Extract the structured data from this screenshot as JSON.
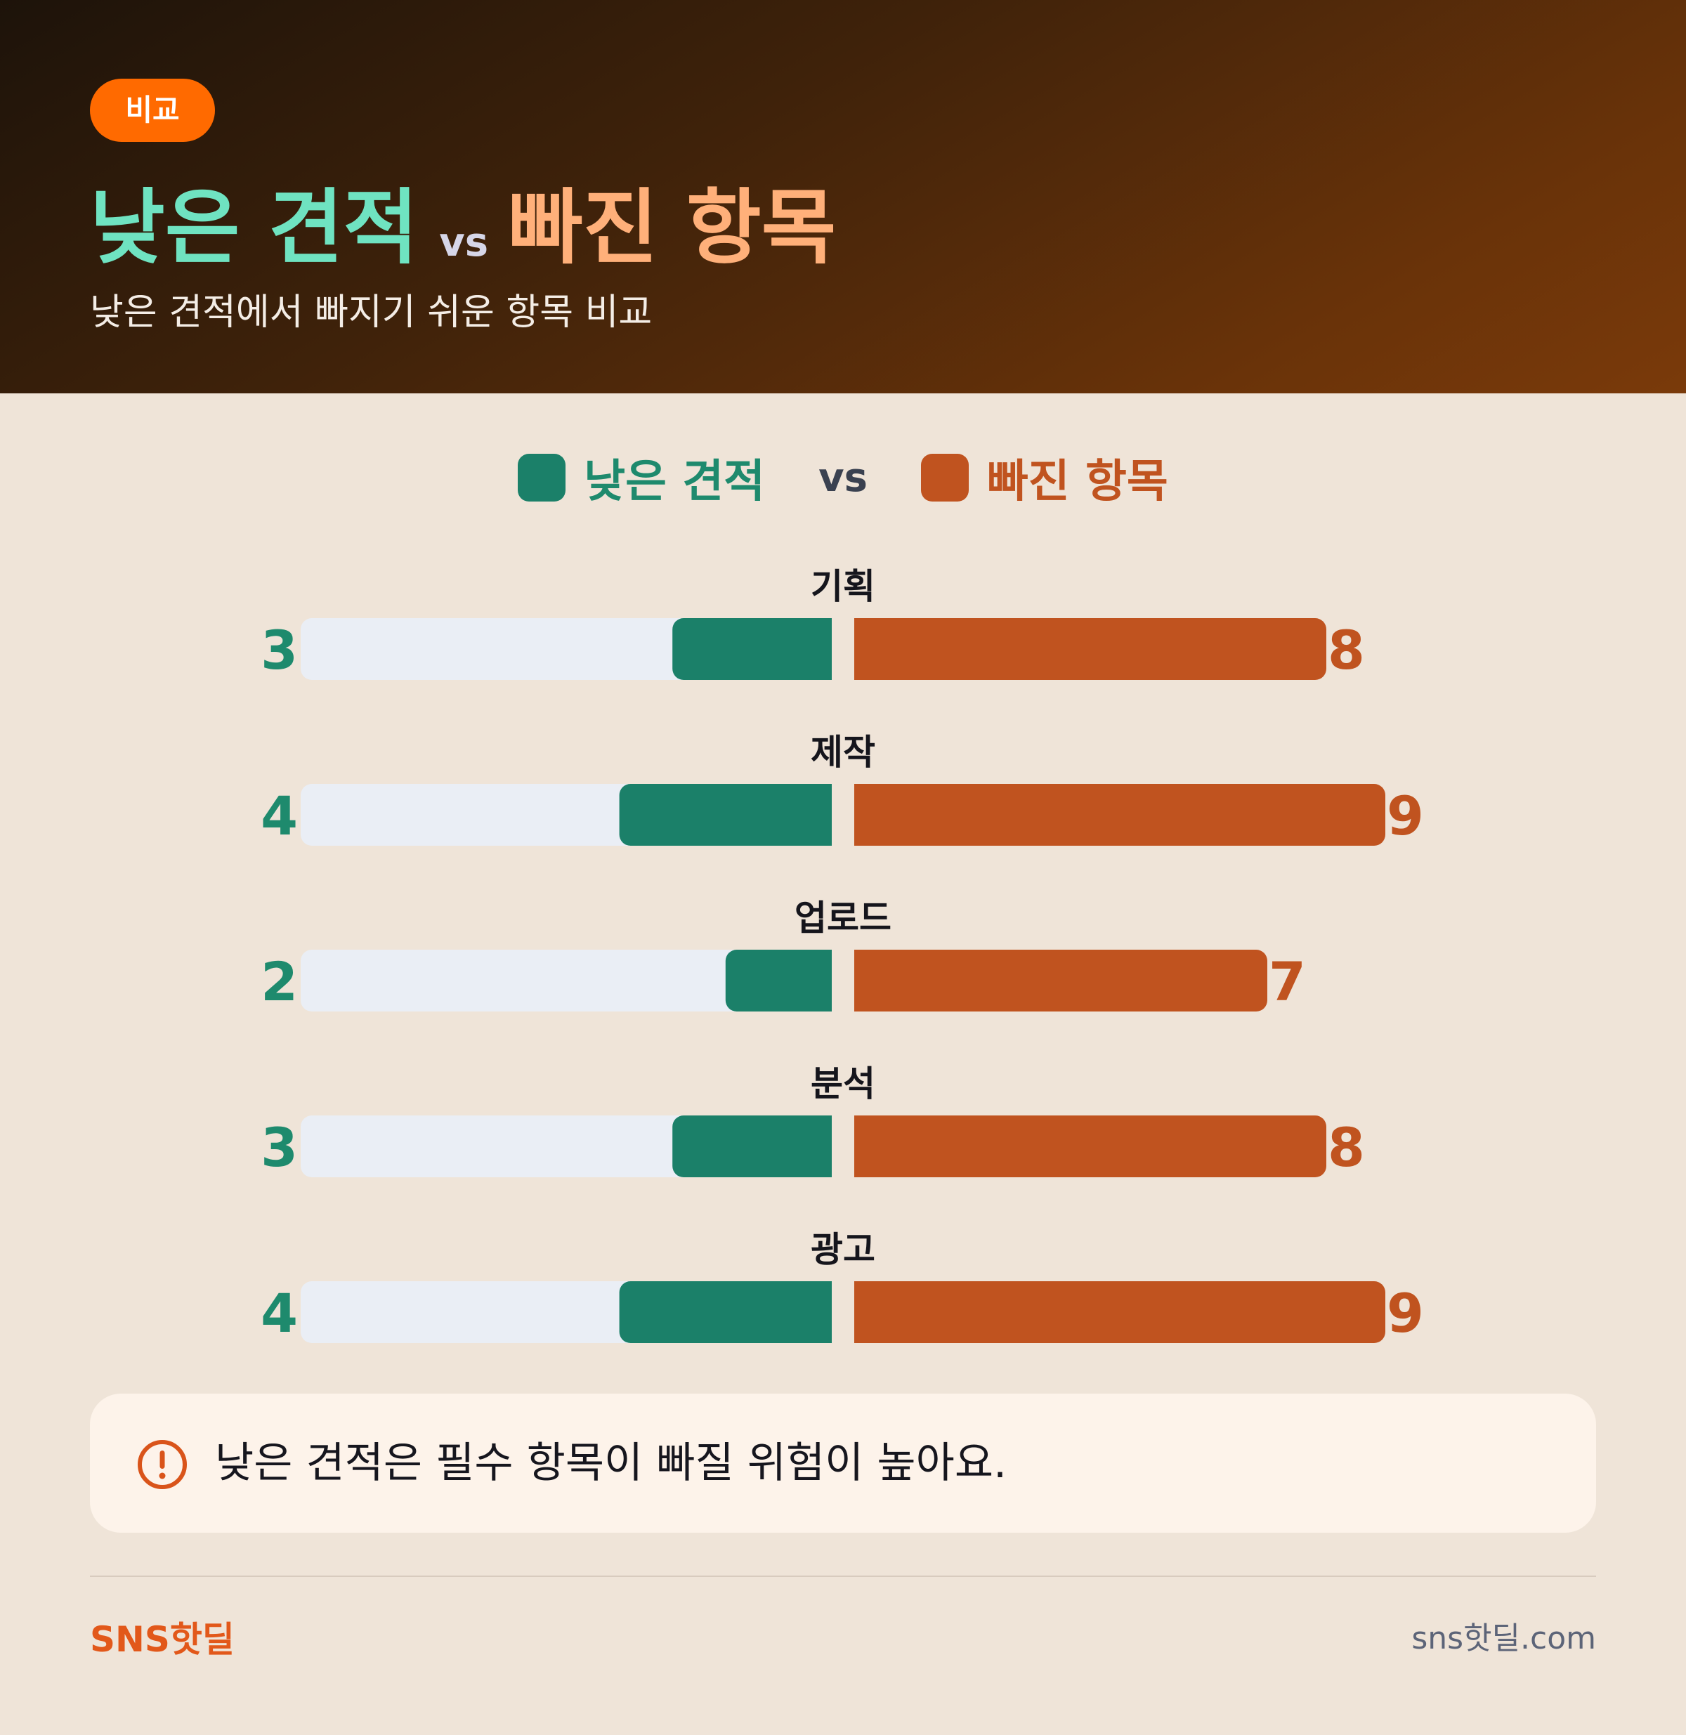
{
  "header": {
    "badge": "비교",
    "title_a": "낮은 견적",
    "title_vs": "vs",
    "title_b": "빠진 항목",
    "subtitle": "낮은 견적에서 빠지기 쉬운 항목 비교"
  },
  "colors": {
    "series_a": "#1b8069",
    "series_b": "#c0531f",
    "track": "#eaeef5",
    "label_a": "#1e8a6d",
    "label_b": "#c0531f"
  },
  "chart_data": {
    "type": "bar",
    "categories": [
      "기획",
      "제작",
      "업로드",
      "분석",
      "광고"
    ],
    "series": [
      {
        "name": "낮은 견적",
        "values": [
          3,
          4,
          2,
          3,
          4
        ]
      },
      {
        "name": "빠진 항목",
        "values": [
          8,
          9,
          7,
          8,
          9
        ]
      }
    ],
    "xlim_a": [
      0,
      10
    ],
    "xlim_b": [
      0,
      9
    ],
    "legend": "top-center",
    "legend_vs": "vs",
    "grid": false
  },
  "note": {
    "icon": "alert-circle-icon",
    "text": "낮은 견적은 필수 항목이 빠질 위험이 높아요."
  },
  "footer": {
    "brand": "SNS핫딜",
    "site": "sns핫딜.com"
  }
}
